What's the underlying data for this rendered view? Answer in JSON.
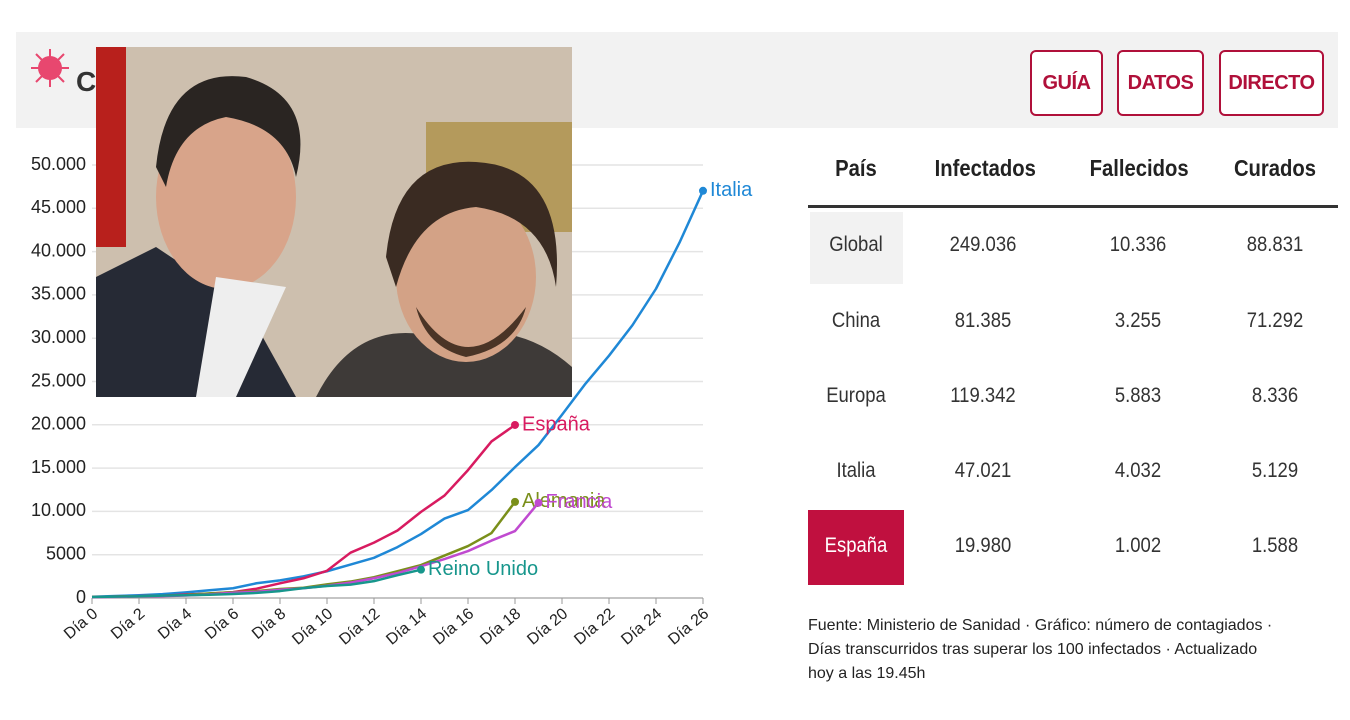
{
  "header": {
    "logo_text": "C",
    "nav": [
      "GUÍA",
      "DATOS",
      "DIRECTO"
    ]
  },
  "chart_data": {
    "type": "line",
    "x": [
      0,
      1,
      2,
      3,
      4,
      5,
      6,
      7,
      8,
      9,
      10,
      11,
      12,
      13,
      14,
      15,
      16,
      17,
      18,
      19,
      20,
      21,
      22,
      23,
      24,
      25,
      26
    ],
    "xlim": [
      0,
      26
    ],
    "xticks": [
      {
        "value": 0,
        "label": "Día 0"
      },
      {
        "value": 2,
        "label": "Día 2"
      },
      {
        "value": 4,
        "label": "Día 4"
      },
      {
        "value": 6,
        "label": "Día 6"
      },
      {
        "value": 8,
        "label": "Día 8"
      },
      {
        "value": 10,
        "label": "Día 10"
      },
      {
        "value": 12,
        "label": "Día 12"
      },
      {
        "value": 14,
        "label": "Día 14"
      },
      {
        "value": 16,
        "label": "Día 16"
      },
      {
        "value": 18,
        "label": "Día 18"
      },
      {
        "value": 20,
        "label": "Día 20"
      },
      {
        "value": 22,
        "label": "Día 22"
      },
      {
        "value": 24,
        "label": "Día 24"
      },
      {
        "value": 26,
        "label": "Día 26"
      }
    ],
    "ylim": [
      0,
      50000
    ],
    "yticks": [
      0,
      5000,
      {
        "value": 10000,
        "label": "10.000"
      },
      {
        "value": 15000,
        "label": "15.000"
      },
      {
        "value": 20000,
        "label": "20.000"
      },
      {
        "value": 25000,
        "label": "25.000"
      },
      {
        "value": 30000,
        "label": "30.000"
      },
      {
        "value": 35000,
        "label": "35.000"
      },
      {
        "value": 40000,
        "label": "40.000"
      },
      {
        "value": 45000,
        "label": "45.000"
      },
      {
        "value": 50000,
        "label": "50.000"
      }
    ],
    "grid": true,
    "series": [
      {
        "name": "Italia",
        "color": "#1f88d6",
        "values": [
          150,
          230,
          320,
          450,
          650,
          890,
          1130,
          1700,
          2040,
          2500,
          3090,
          3860,
          4640,
          5880,
          7380,
          9170,
          10150,
          12460,
          15110,
          17660,
          21160,
          24750,
          27980,
          31510,
          35710,
          41040,
          47021
        ]
      },
      {
        "name": "España",
        "color": "#d81b60",
        "values": [
          120,
          165,
          222,
          259,
          400,
          500,
          673,
          1073,
          1695,
          2277,
          3146,
          5232,
          6391,
          7798,
          9942,
          11826,
          14769,
          18077,
          19980,
          null,
          null,
          null,
          null,
          null,
          null,
          null,
          null
        ]
      },
      {
        "name": "Alemania",
        "color": "#7a8f1a",
        "values": [
          130,
          160,
          200,
          240,
          350,
          530,
          670,
          800,
          1040,
          1180,
          1570,
          1900,
          2400,
          3100,
          3800,
          4900,
          6000,
          7500,
          11100,
          null,
          null,
          null,
          null,
          null,
          null,
          null,
          null
        ]
      },
      {
        "name": "Francia",
        "color": "#c04ad0",
        "values": [
          100,
          130,
          190,
          210,
          285,
          420,
          610,
          710,
          960,
          1130,
          1410,
          1780,
          2280,
          2880,
          3660,
          4500,
          5420,
          6630,
          7730,
          11000,
          null,
          null,
          null,
          null,
          null,
          null,
          null
        ]
      },
      {
        "name": "Reino Unido",
        "color": "#17968c",
        "values": [
          115,
          160,
          200,
          270,
          320,
          380,
          460,
          590,
          800,
          1140,
          1390,
          1540,
          1950,
          2630,
          3270,
          null,
          null,
          null,
          null,
          null,
          null,
          null,
          null,
          null,
          null,
          null,
          null
        ]
      }
    ]
  },
  "table": {
    "header": [
      "País",
      "Infectados",
      "Fallecidos",
      "Curados"
    ],
    "rows": [
      [
        "Global",
        "249.036",
        "10.336",
        "88.831"
      ],
      [
        "China",
        "81.385",
        "3.255",
        "71.292"
      ],
      [
        "Europa",
        "119.342",
        "5.883",
        "8.336"
      ],
      [
        "Italia",
        "47.021",
        "4.032",
        "5.129"
      ],
      [
        "España",
        "19.980",
        "1.002",
        "1.588"
      ]
    ]
  },
  "footnote": "Fuente: Ministerio de Sanidad · Gráfico: número de contagiados · Días transcurridos tras superar los 100 infectados · Actualizado hoy a las 19.45h"
}
